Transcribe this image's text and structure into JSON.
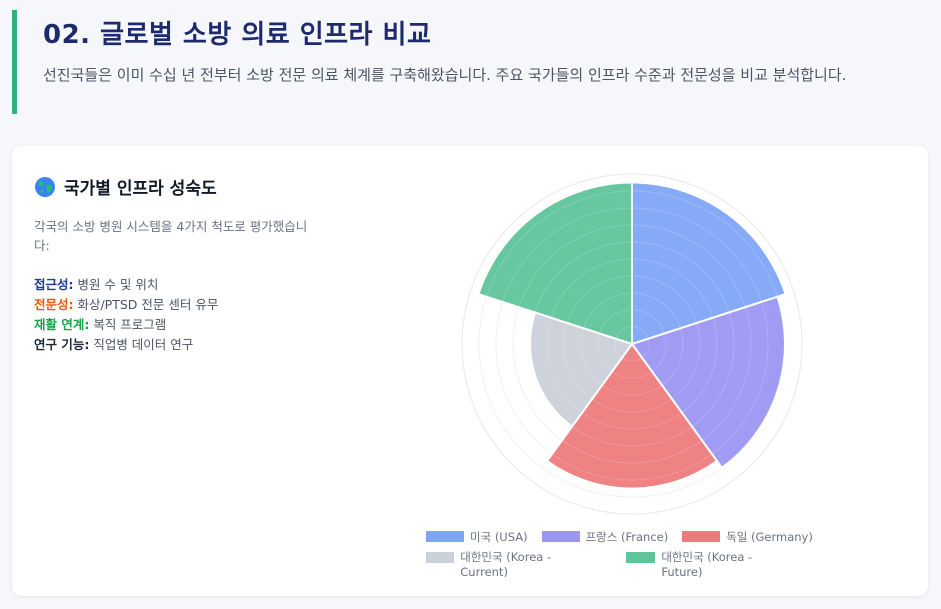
{
  "header": {
    "title": "02. 글로벌 소방 의료 인프라 비교",
    "subtitle": "선진국들은 이미 수십 년 전부터 소방 전문 의료 체계를 구축해왔습니다. 주요 국가들의 인프라 수준과 전문성을 비교 분석합니다."
  },
  "card": {
    "icon": "globe-icon",
    "title": "국가별 인프라 성숙도",
    "description": "각국의 소방 병원 시스템을 4가지 척도로 평가했습니다:",
    "metrics": [
      {
        "key": "접근성:",
        "value": " 병원 수 및 위치"
      },
      {
        "key": "전문성:",
        "value": " 화상/PTSD 전문 센터 유무"
      },
      {
        "key": "재활 연계:",
        "value": " 복직 프로그램"
      },
      {
        "key": "연구 기능:",
        "value": " 직업병 데이터 연구"
      }
    ]
  },
  "chart_data": {
    "type": "polarArea",
    "title": "",
    "categories": [
      "미국 (USA)",
      "프랑스 (France)",
      "독일 (Germany)",
      "대한민국 (Korea - Current)",
      "대한민국 (Korea - Future)"
    ],
    "values": [
      95,
      90,
      85,
      60,
      95
    ],
    "colors": [
      "#7ea6f7",
      "#9b96f2",
      "#ee7b7b",
      "#cbd1d9",
      "#5fc49a"
    ],
    "rlim": [
      0,
      100
    ],
    "grid": true,
    "legend": "bottom"
  }
}
